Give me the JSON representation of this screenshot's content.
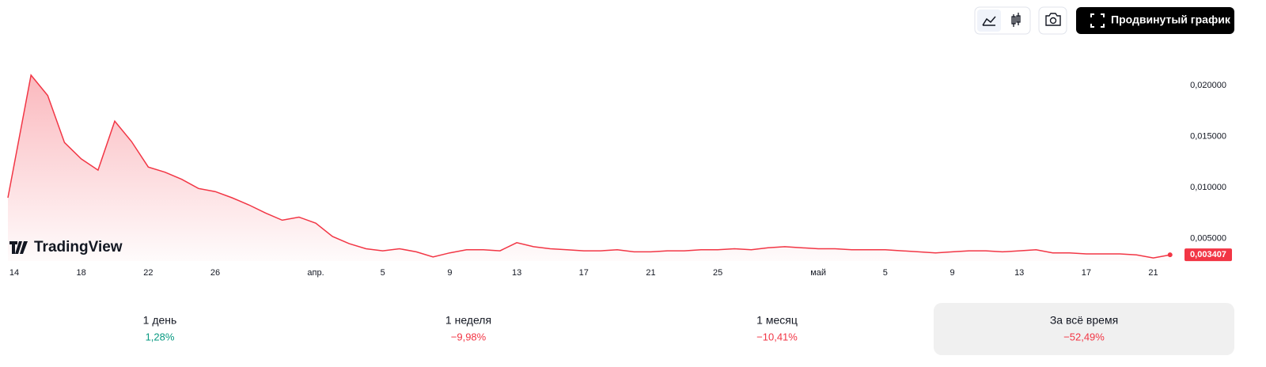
{
  "toolbar": {
    "button": "Продвинутый график"
  },
  "logo": "TradingView",
  "chart_data": {
    "type": "line",
    "color": "#f23645",
    "categories": [
      "14",
      null,
      null,
      null,
      "18",
      null,
      null,
      null,
      "22",
      null,
      null,
      null,
      "26",
      null,
      null,
      null,
      null,
      null,
      "апр.",
      null,
      null,
      null,
      "5",
      null,
      null,
      null,
      "9",
      null,
      null,
      null,
      "13",
      null,
      null,
      null,
      "17",
      null,
      null,
      null,
      "21",
      null,
      null,
      null,
      "25",
      null,
      null,
      null,
      null,
      null,
      "май",
      null,
      null,
      null,
      "5",
      null,
      null,
      null,
      "9",
      null,
      null,
      null,
      "13",
      null,
      null,
      null,
      "17",
      null,
      null,
      null,
      "21",
      null
    ],
    "values": [
      0.009,
      0.021,
      0.019,
      0.0144,
      0.0128,
      0.0117,
      0.0165,
      0.0145,
      0.012,
      0.0115,
      0.0108,
      0.0099,
      0.0096,
      0.009,
      0.0083,
      0.0075,
      0.0068,
      0.0071,
      0.0065,
      0.0052,
      0.0045,
      0.004,
      0.0038,
      0.004,
      0.0037,
      0.0032,
      0.0036,
      0.0039,
      0.0039,
      0.0038,
      0.0046,
      0.0042,
      0.004,
      0.0039,
      0.0038,
      0.0038,
      0.0039,
      0.0037,
      0.0037,
      0.0038,
      0.0038,
      0.0039,
      0.0039,
      0.004,
      0.0039,
      0.0041,
      0.0042,
      0.0041,
      0.004,
      0.004,
      0.0039,
      0.0039,
      0.0039,
      0.0038,
      0.0037,
      0.0036,
      0.0037,
      0.0038,
      0.0038,
      0.0037,
      0.0038,
      0.0039,
      0.0036,
      0.0036,
      0.0035,
      0.0035,
      0.0035,
      0.0034,
      0.0031,
      0.003407
    ],
    "ylim": [
      0.0028,
      0.0241
    ],
    "yticks": [
      {
        "value": 0.005,
        "label": "0,005000"
      },
      {
        "value": 0.01,
        "label": "0,010000"
      },
      {
        "value": 0.015,
        "label": "0,015000"
      },
      {
        "value": 0.02,
        "label": "0,020000"
      }
    ],
    "last_price": {
      "value": 0.003407,
      "label": "0,003407"
    }
  },
  "periods": [
    {
      "name": "1 день",
      "change": 1.28,
      "change_label": "1,28%"
    },
    {
      "name": "1 неделя",
      "change": -9.98,
      "change_label": "−9,98%"
    },
    {
      "name": "1 месяц",
      "change": -10.41,
      "change_label": "−10,41%"
    },
    {
      "name": "За всё время",
      "change": -52.49,
      "change_label": "−52,49%",
      "selected": true
    }
  ]
}
